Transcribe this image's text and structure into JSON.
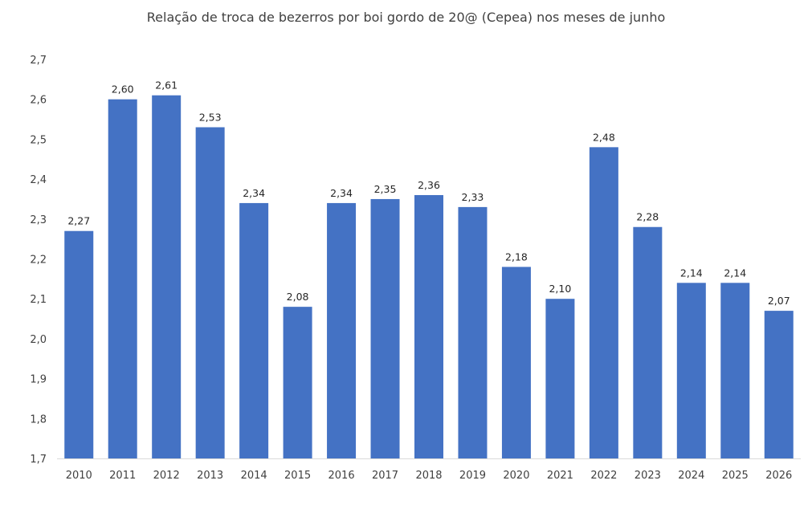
{
  "chart_data": {
    "type": "bar",
    "title": "Relação de troca de bezerros por boi gordo de 20@ (Cepea) nos meses de junho",
    "xlabel": "",
    "ylabel": "",
    "categories": [
      "2010",
      "2011",
      "2012",
      "2013",
      "2014",
      "2015",
      "2016",
      "2017",
      "2018",
      "2019",
      "2020",
      "2021",
      "2022",
      "2023",
      "2024",
      "2025",
      "2026"
    ],
    "values": [
      2.27,
      2.6,
      2.61,
      2.53,
      2.34,
      2.08,
      2.34,
      2.35,
      2.36,
      2.33,
      2.18,
      2.1,
      2.48,
      2.28,
      2.14,
      2.14,
      2.07
    ],
    "data_labels": [
      "2,27",
      "2,60",
      "2,61",
      "2,53",
      "2,34",
      "2,08",
      "2,34",
      "2,35",
      "2,36",
      "2,33",
      "2,18",
      "2,10",
      "2,48",
      "2,28",
      "2,14",
      "2,14",
      "2,07"
    ],
    "y_ticks": [
      1.7,
      1.8,
      1.9,
      2.0,
      2.1,
      2.2,
      2.3,
      2.4,
      2.5,
      2.6,
      2.7
    ],
    "y_tick_labels": [
      "1,7",
      "1,8",
      "1,9",
      "2,0",
      "2,1",
      "2,2",
      "2,3",
      "2,4",
      "2,5",
      "2,6",
      "2,7"
    ],
    "ylim": [
      1.7,
      2.7
    ],
    "grid": false,
    "legend": "none",
    "bar_color": "#4472C4",
    "axis_color": "#D9D9D9"
  }
}
